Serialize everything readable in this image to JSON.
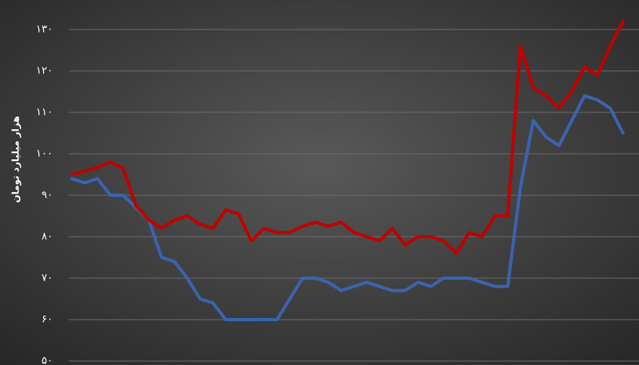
{
  "chart_data": {
    "type": "line",
    "y_label": "هزار میلیارد تومان",
    "categories": [
      null,
      null,
      null,
      null,
      null,
      null,
      null,
      null,
      null,
      null,
      null,
      null,
      null,
      null,
      null,
      null,
      null,
      null,
      null,
      null,
      null,
      null,
      null,
      null,
      null,
      null,
      null,
      null,
      null,
      null,
      null,
      null,
      null,
      null,
      null,
      null,
      null,
      null,
      null,
      null,
      null,
      null,
      null,
      null
    ],
    "series": [
      {
        "color": "#c00000",
        "values": [
          95,
          95.8,
          96.7,
          98,
          96.5,
          87.5,
          84,
          82,
          84,
          85,
          83,
          82,
          86.5,
          85.5,
          79,
          82,
          81,
          81,
          82.5,
          83.5,
          82.5,
          83.5,
          81,
          80,
          79,
          82,
          78,
          80,
          80,
          79,
          76,
          81,
          80,
          85,
          85,
          126,
          116,
          114,
          111,
          115,
          121,
          119,
          126,
          132
        ]
      },
      {
        "color": "#3a64b0",
        "values": [
          94,
          93,
          94,
          90,
          90,
          87,
          84,
          75,
          74,
          70,
          65,
          64,
          60,
          60,
          60,
          60,
          60,
          65,
          70,
          70,
          69,
          67,
          68,
          69,
          68,
          67,
          67,
          69,
          68,
          70,
          70,
          70,
          69,
          68,
          68,
          92,
          108,
          104,
          102,
          108,
          114,
          113,
          111,
          105
        ]
      }
    ],
    "ylim": [
      50,
      130
    ],
    "yticks": [
      {
        "value": 50,
        "label": "۵۰"
      },
      {
        "value": 60,
        "label": "۶۰"
      },
      {
        "value": 70,
        "label": "۷۰"
      },
      {
        "value": 80,
        "label": "۸۰"
      },
      {
        "value": 90,
        "label": "۹۰"
      },
      {
        "value": 100,
        "label": "۱۰۰"
      },
      {
        "value": 110,
        "label": "۱۱۰"
      },
      {
        "value": 120,
        "label": "۱۲۰"
      },
      {
        "value": 130,
        "label": "۱۳۰"
      }
    ],
    "grid": true
  }
}
